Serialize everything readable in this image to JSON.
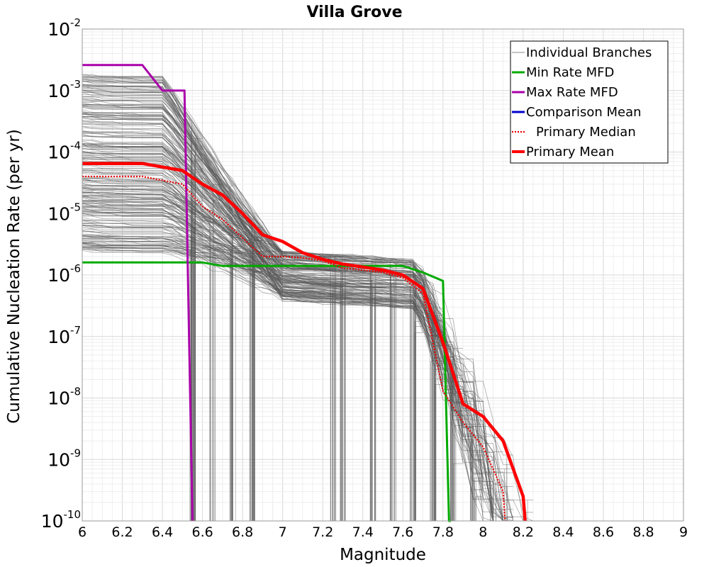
{
  "chart_data": {
    "type": "line",
    "title": "Villa Grove",
    "xlabel": "Magnitude",
    "ylabel": "Cumulative Nucleation Rate (per yr)",
    "xlim": [
      6,
      9
    ],
    "ylim": [
      1e-10,
      0.01
    ],
    "y_scale": "log",
    "grid": true,
    "legend_position": "top-right",
    "x_ticks": [
      "6",
      "6.2",
      "6.4",
      "6.6",
      "6.8",
      "7",
      "7.2",
      "7.4",
      "7.6",
      "7.8",
      "8",
      "8.2",
      "8.4",
      "8.6",
      "8.8",
      "9"
    ],
    "y_ticks": [
      {
        "base": "10",
        "exp": "-2"
      },
      {
        "base": "10",
        "exp": "-3"
      },
      {
        "base": "10",
        "exp": "-4"
      },
      {
        "base": "10",
        "exp": "-5"
      },
      {
        "base": "10",
        "exp": "-6"
      },
      {
        "base": "10",
        "exp": "-7"
      },
      {
        "base": "10",
        "exp": "-8"
      },
      {
        "base": "10",
        "exp": "-9"
      },
      {
        "base": "10",
        "exp": "-10"
      }
    ],
    "series": [
      {
        "name": "Individual Branches",
        "color": "#555555",
        "style": "thin-solid",
        "note_count_approx": "many (logic-tree branches)"
      },
      {
        "name": "Min Rate MFD",
        "color": "#00aa00",
        "style": "solid",
        "x": [
          6.0,
          6.5,
          6.6,
          6.7,
          6.8,
          7.0,
          7.2,
          7.4,
          7.6,
          7.7,
          7.8,
          7.83,
          7.84
        ],
        "y": [
          1.6e-06,
          1.6e-06,
          1.6e-06,
          1.4e-06,
          1.4e-06,
          1.4e-06,
          1.4e-06,
          1.4e-06,
          1.4e-06,
          1.1e-06,
          8e-07,
          1e-10,
          1e-10
        ]
      },
      {
        "name": "Max Rate MFD",
        "color": "#aa00aa",
        "style": "solid",
        "x": [
          6.0,
          6.3,
          6.4,
          6.5,
          6.51,
          6.55
        ],
        "y": [
          0.0026,
          0.0026,
          0.001,
          0.001,
          0.001,
          1e-10
        ]
      },
      {
        "name": "Comparison Mean",
        "color": "#0000cc",
        "style": "solid",
        "x": [],
        "y": []
      },
      {
        "name": "Primary Median",
        "color": "#ee0000",
        "style": "dotted",
        "x": [
          6.0,
          6.3,
          6.5,
          6.6,
          6.7,
          6.8,
          6.9,
          7.0,
          7.1,
          7.2,
          7.3,
          7.4,
          7.5,
          7.6,
          7.7,
          7.8,
          7.9,
          8.0,
          8.1,
          8.11
        ],
        "y": [
          4e-05,
          4e-05,
          3e-05,
          1.3e-05,
          8e-06,
          4e-06,
          2e-06,
          2e-06,
          1.9e-06,
          1.7e-06,
          1.3e-06,
          1.2e-06,
          1.1e-06,
          9e-07,
          5e-07,
          1.3e-08,
          4e-09,
          1.6e-09,
          3e-10,
          1e-10
        ]
      },
      {
        "name": "Primary Mean",
        "color": "#ff0000",
        "style": "thick-solid",
        "x": [
          6.0,
          6.3,
          6.5,
          6.6,
          6.7,
          6.8,
          6.9,
          7.0,
          7.1,
          7.2,
          7.3,
          7.4,
          7.5,
          7.6,
          7.7,
          7.8,
          7.9,
          8.0,
          8.1,
          8.2,
          8.21
        ],
        "y": [
          6.5e-05,
          6.5e-05,
          5e-05,
          3e-05,
          2e-05,
          1e-05,
          4.5e-06,
          3.5e-06,
          2.3e-06,
          1.8e-06,
          1.5e-06,
          1.35e-06,
          1.2e-06,
          1e-06,
          6e-07,
          8e-08,
          8e-09,
          5e-09,
          2e-09,
          2.5e-10,
          1e-10
        ]
      }
    ]
  }
}
